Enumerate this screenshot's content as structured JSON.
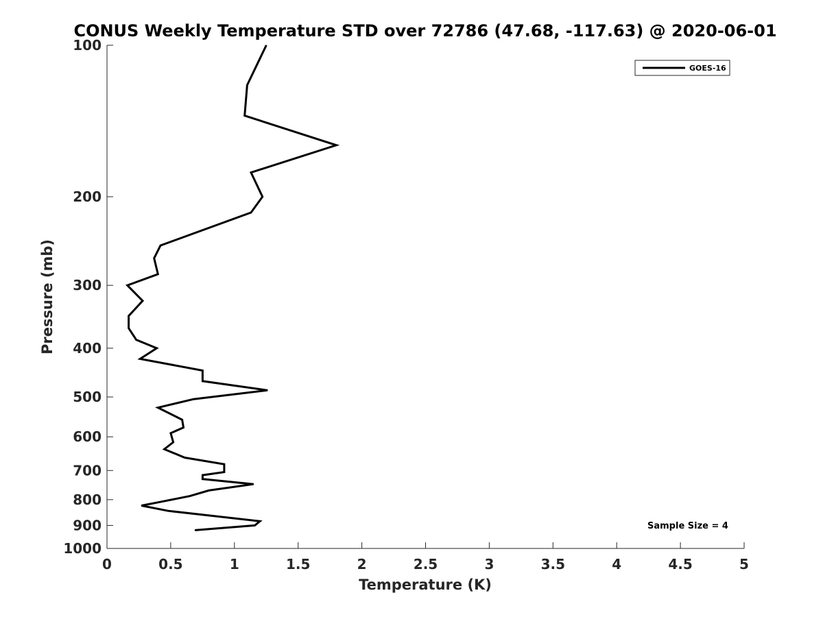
{
  "chart_data": {
    "type": "line",
    "title": "CONUS Weekly Temperature STD over 72786 (47.68, -117.63) @ 2020-06-01",
    "xlabel": "Temperature (K)",
    "ylabel": "Pressure (mb)",
    "xlim": [
      0,
      5
    ],
    "ylim": [
      100,
      1000
    ],
    "y_scale": "log",
    "y_reversed": true,
    "x_ticks": [
      "0",
      "0.5",
      "1",
      "1.5",
      "2",
      "2.5",
      "3",
      "3.5",
      "4",
      "4.5",
      "5"
    ],
    "y_ticks": [
      "100",
      "200",
      "300",
      "400",
      "500",
      "600",
      "700",
      "800",
      "900",
      "1000"
    ],
    "legend_position": "top-right",
    "grid": false,
    "annotation": "Sample Size = 4",
    "series": [
      {
        "name": "GOES-16",
        "color": "#000000",
        "x": [
          1.25,
          1.1,
          1.08,
          1.8,
          1.13,
          1.22,
          1.13,
          0.42,
          0.37,
          0.4,
          0.16,
          0.28,
          0.17,
          0.17,
          0.23,
          0.39,
          0.26,
          0.75,
          0.75,
          1.26,
          0.68,
          0.4,
          0.59,
          0.6,
          0.5,
          0.52,
          0.45,
          0.61,
          0.92,
          0.92,
          0.75,
          0.75,
          1.15,
          0.8,
          0.65,
          0.4,
          0.27,
          0.48,
          0.8,
          1.2,
          1.16,
          0.69
        ],
        "y": [
          100,
          120,
          138,
          158,
          179,
          200,
          215,
          250,
          265,
          285,
          300,
          322,
          345,
          365,
          385,
          400,
          420,
          443,
          465,
          485,
          505,
          525,
          555,
          575,
          590,
          615,
          635,
          660,
          680,
          705,
          715,
          728,
          745,
          767,
          787,
          810,
          822,
          842,
          860,
          883,
          900,
          920
        ]
      }
    ]
  }
}
